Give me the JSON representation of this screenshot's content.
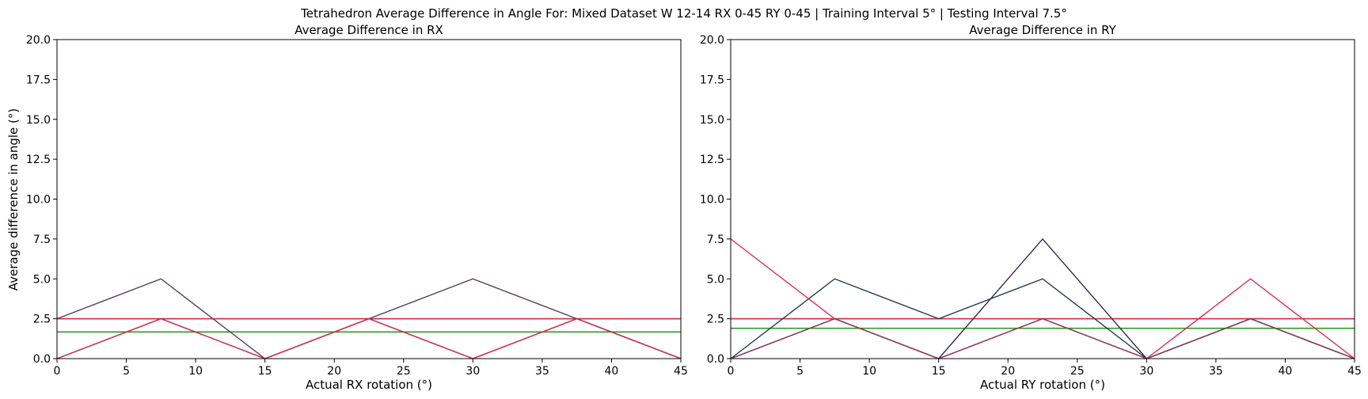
{
  "figure": {
    "suptitle": "Tetrahedron Average Difference in Angle For: Mixed Dataset W 12-14 RX 0-45 RY 0-45 | Training Interval 5° | Testing Interval 7.5°"
  },
  "colors": {
    "navy": "#1f3a55",
    "plum": "#5a3a5a",
    "crimson": "#dc2d4a",
    "green": "#2e9a2e",
    "teal_line": "#3b6b85"
  },
  "chart_data": [
    {
      "type": "line",
      "title": "Average Difference in RX",
      "xlabel": "Actual RX rotation (°)",
      "ylabel": "Average difference in angle (°)",
      "xlim": [
        0,
        45
      ],
      "ylim": [
        0,
        20
      ],
      "xticks": [
        0,
        5,
        10,
        15,
        20,
        25,
        30,
        35,
        40,
        45
      ],
      "yticks": [
        0.0,
        2.5,
        5.0,
        7.5,
        10.0,
        12.5,
        15.0,
        17.5,
        20.0
      ],
      "x": [
        0,
        7.5,
        15,
        22.5,
        30,
        37.5,
        45
      ],
      "series": [
        {
          "values": [
            2.5,
            5.0,
            0.0,
            2.5,
            5.0,
            2.5,
            0.0
          ],
          "color": "#5a3a5a"
        },
        {
          "values": [
            0.0,
            2.5,
            0.0,
            2.5,
            0.0,
            2.5,
            0.0
          ],
          "color": "#1f3a55"
        },
        {
          "values": [
            0.0,
            2.5,
            0.0,
            2.5,
            0.0,
            2.5,
            0.0
          ],
          "color": "#dc2d4a"
        }
      ],
      "hlines": [
        {
          "y": 2.5,
          "color": "#3b6b85"
        },
        {
          "y": 2.5,
          "color": "#dc2d4a"
        },
        {
          "y": 1.67,
          "color": "#2e9a2e"
        }
      ],
      "grid": false,
      "legend": "none"
    },
    {
      "type": "line",
      "title": "Average Difference in RY",
      "xlabel": "Actual RY rotation (°)",
      "ylabel": "",
      "xlim": [
        0,
        45
      ],
      "ylim": [
        0,
        20
      ],
      "xticks": [
        0,
        5,
        10,
        15,
        20,
        25,
        30,
        35,
        40,
        45
      ],
      "yticks": [
        0.0,
        2.5,
        5.0,
        7.5,
        10.0,
        12.5,
        15.0,
        17.5,
        20.0
      ],
      "x": [
        0,
        7.5,
        15,
        22.5,
        30,
        37.5,
        45
      ],
      "series": [
        {
          "values": [
            0.0,
            5.0,
            2.5,
            5.0,
            0.0,
            2.5,
            0.0
          ],
          "color": "#1f3a55"
        },
        {
          "values": [
            0.0,
            2.5,
            0.0,
            7.5,
            0.0,
            2.5,
            0.0
          ],
          "color": "#3a2a4a"
        },
        {
          "values": [
            7.5,
            2.5,
            0.0,
            2.5,
            0.0,
            5.0,
            0.0
          ],
          "color": "#dc2d4a"
        },
        {
          "values": [
            0.0,
            2.5,
            0.0,
            2.5,
            0.0,
            2.5,
            0.0
          ],
          "color": "#8a3a5a"
        }
      ],
      "hlines": [
        {
          "y": 2.5,
          "color": "#3b6b85"
        },
        {
          "y": 2.5,
          "color": "#dc2d4a"
        },
        {
          "y": 1.9,
          "color": "#2e9a2e"
        }
      ],
      "grid": false,
      "legend": "none"
    }
  ]
}
